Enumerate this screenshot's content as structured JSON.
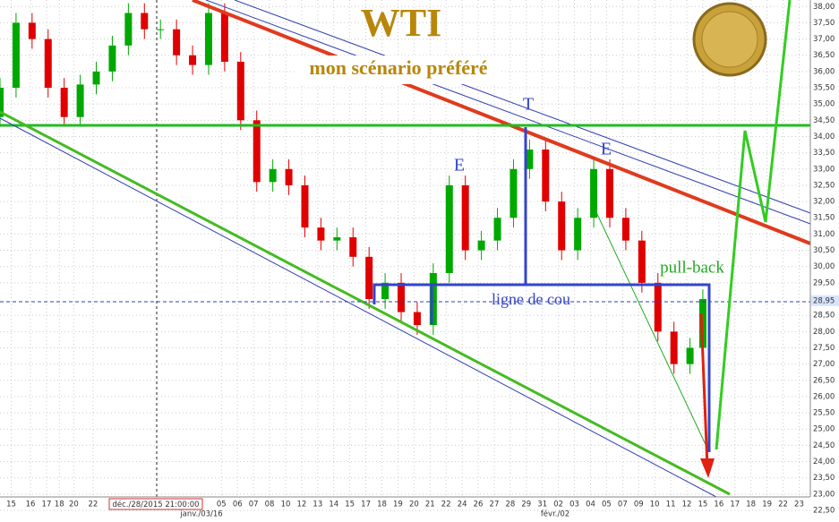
{
  "chart_data": {
    "type": "candlestick",
    "title": "WTI",
    "subtitle": "mon scénario préféré",
    "annotations": {
      "top": "T",
      "left_shoulder": "E",
      "right_shoulder": "E",
      "pullback": "pull-back",
      "neckline": "ligne de cou"
    },
    "cursor_label": "déc./28/2015 21:00:00",
    "month_labels": [
      "janv./03/16",
      "févr./02"
    ],
    "up_color": "#00a800",
    "down_color": "#e00000",
    "x": [
      0,
      1,
      2,
      3,
      4,
      5,
      6,
      7,
      8,
      9,
      10,
      11,
      12,
      13,
      14,
      15,
      16,
      17,
      18,
      19,
      20,
      21,
      22,
      23,
      24,
      25,
      26,
      27,
      28,
      29,
      30,
      31,
      32,
      33,
      34,
      35,
      36,
      37,
      38,
      39,
      40,
      41,
      42,
      43,
      43.8
    ],
    "open": [
      34.6,
      35.5,
      37.5,
      37.0,
      35.5,
      34.6,
      35.6,
      36.0,
      36.8,
      37.8,
      37.3,
      37.3,
      36.5,
      36.2,
      37.8,
      36.3,
      34.5,
      32.6,
      33.0,
      32.5,
      31.2,
      30.8,
      30.9,
      30.3,
      29.0,
      29.5,
      28.6,
      28.2,
      29.8,
      32.5,
      30.5,
      30.8,
      31.5,
      33.0,
      33.6,
      32.0,
      30.5,
      31.5,
      33.0,
      31.5,
      30.8,
      29.5,
      28.0,
      27.0,
      27.5
    ],
    "high": [
      35.8,
      37.8,
      37.8,
      37.3,
      35.8,
      35.9,
      36.3,
      37.1,
      38.1,
      38.1,
      37.6,
      37.6,
      36.8,
      38.1,
      38.1,
      36.6,
      34.8,
      33.3,
      33.3,
      32.8,
      31.5,
      31.2,
      31.2,
      30.6,
      29.8,
      29.8,
      28.9,
      30.1,
      32.8,
      32.8,
      31.1,
      31.8,
      33.3,
      33.9,
      33.9,
      32.3,
      31.8,
      33.3,
      33.3,
      31.8,
      31.1,
      29.8,
      28.3,
      27.8,
      29.3
    ],
    "low": [
      34.3,
      35.2,
      36.7,
      35.2,
      34.3,
      34.3,
      35.3,
      35.7,
      36.5,
      37.0,
      37.0,
      36.2,
      35.9,
      35.9,
      36.0,
      34.2,
      32.3,
      32.3,
      32.2,
      30.9,
      30.5,
      30.5,
      30.0,
      28.7,
      28.7,
      28.3,
      27.9,
      27.9,
      29.5,
      30.2,
      30.2,
      30.5,
      31.2,
      32.7,
      31.7,
      30.2,
      30.2,
      31.2,
      31.2,
      30.5,
      29.2,
      27.7,
      26.7,
      26.7,
      27.2
    ],
    "close": [
      35.5,
      37.5,
      37.0,
      35.5,
      34.6,
      35.6,
      36.0,
      36.8,
      37.8,
      37.3,
      37.3,
      36.5,
      36.2,
      37.8,
      36.3,
      34.5,
      32.6,
      33.0,
      32.5,
      31.2,
      30.8,
      30.9,
      30.3,
      29.0,
      29.5,
      28.6,
      28.2,
      29.8,
      32.5,
      30.5,
      30.8,
      31.5,
      33.0,
      33.6,
      32.0,
      30.5,
      31.5,
      33.0,
      31.5,
      30.8,
      29.5,
      28.0,
      27.0,
      27.5,
      29.0
    ],
    "xlim": [
      0,
      50.5
    ],
    "ylim": [
      22.5,
      38.2
    ],
    "xticks": [
      {
        "value": 0.7,
        "label": "15"
      },
      {
        "value": 1.9,
        "label": "16"
      },
      {
        "value": 2.9,
        "label": "17"
      },
      {
        "value": 3.7,
        "label": "18"
      },
      {
        "value": 4.6,
        "label": "20"
      },
      {
        "value": 5.8,
        "label": "22"
      },
      {
        "value": 13.8,
        "label": "05"
      },
      {
        "value": 14.8,
        "label": "06"
      },
      {
        "value": 15.8,
        "label": "07"
      },
      {
        "value": 16.8,
        "label": "08"
      },
      {
        "value": 17.8,
        "label": "10"
      },
      {
        "value": 18.8,
        "label": "12"
      },
      {
        "value": 19.8,
        "label": "13"
      },
      {
        "value": 20.8,
        "label": "14"
      },
      {
        "value": 21.8,
        "label": "15"
      },
      {
        "value": 22.8,
        "label": "17"
      },
      {
        "value": 23.8,
        "label": "18"
      },
      {
        "value": 24.8,
        "label": "19"
      },
      {
        "value": 25.8,
        "label": "20"
      },
      {
        "value": 26.8,
        "label": "21"
      },
      {
        "value": 27.8,
        "label": "22"
      },
      {
        "value": 28.8,
        "label": "24"
      },
      {
        "value": 29.8,
        "label": "26"
      },
      {
        "value": 30.8,
        "label": "27"
      },
      {
        "value": 31.8,
        "label": "28"
      },
      {
        "value": 32.8,
        "label": "29"
      },
      {
        "value": 33.8,
        "label": "31"
      },
      {
        "value": 34.8,
        "label": "02"
      },
      {
        "value": 35.8,
        "label": "03"
      },
      {
        "value": 36.8,
        "label": "04"
      },
      {
        "value": 37.8,
        "label": "05"
      },
      {
        "value": 38.8,
        "label": "07"
      },
      {
        "value": 39.8,
        "label": "09"
      },
      {
        "value": 40.8,
        "label": "10"
      },
      {
        "value": 41.8,
        "label": "11"
      },
      {
        "value": 42.8,
        "label": "12"
      },
      {
        "value": 43.8,
        "label": "15"
      },
      {
        "value": 44.8,
        "label": "16"
      },
      {
        "value": 45.8,
        "label": "17"
      },
      {
        "value": 46.8,
        "label": "18"
      },
      {
        "value": 47.8,
        "label": "19"
      },
      {
        "value": 48.8,
        "label": "22"
      },
      {
        "value": 49.8,
        "label": "23"
      }
    ],
    "yticks": [
      {
        "value": 22.5,
        "label": "22,50"
      },
      {
        "value": 23,
        "label": "23,00"
      },
      {
        "value": 23.5,
        "label": "23,50"
      },
      {
        "value": 24,
        "label": "24,00"
      },
      {
        "value": 24.5,
        "label": "24,50"
      },
      {
        "value": 25,
        "label": "25,00"
      },
      {
        "value": 25.5,
        "label": "25,50"
      },
      {
        "value": 26,
        "label": "26,00"
      },
      {
        "value": 26.5,
        "label": "26,50"
      },
      {
        "value": 27,
        "label": "27,00"
      },
      {
        "value": 27.5,
        "label": "27,50"
      },
      {
        "value": 28,
        "label": "28,00"
      },
      {
        "value": 28.5,
        "label": "28,50"
      },
      {
        "value": 29.5,
        "label": "29,50"
      },
      {
        "value": 30,
        "label": "30,00"
      },
      {
        "value": 30.5,
        "label": "30,50"
      },
      {
        "value": 31,
        "label": "31,00"
      },
      {
        "value": 31.5,
        "label": "31,50"
      },
      {
        "value": 32,
        "label": "32,00"
      },
      {
        "value": 32.5,
        "label": "32,50"
      },
      {
        "value": 33,
        "label": "33,00"
      },
      {
        "value": 33.5,
        "label": "33,50"
      },
      {
        "value": 34,
        "label": "34,00"
      },
      {
        "value": 34.5,
        "label": "34,50"
      },
      {
        "value": 35,
        "label": "35,00"
      },
      {
        "value": 35.5,
        "label": "35,50"
      },
      {
        "value": 36,
        "label": "36,00"
      },
      {
        "value": 36.5,
        "label": "36,50"
      },
      {
        "value": 37,
        "label": "37,00"
      },
      {
        "value": 37.5,
        "label": "37,50"
      },
      {
        "value": 38,
        "label": "38,00"
      }
    ],
    "last_price": {
      "value": 28.95,
      "label": "28,95"
    },
    "grid": true
  }
}
